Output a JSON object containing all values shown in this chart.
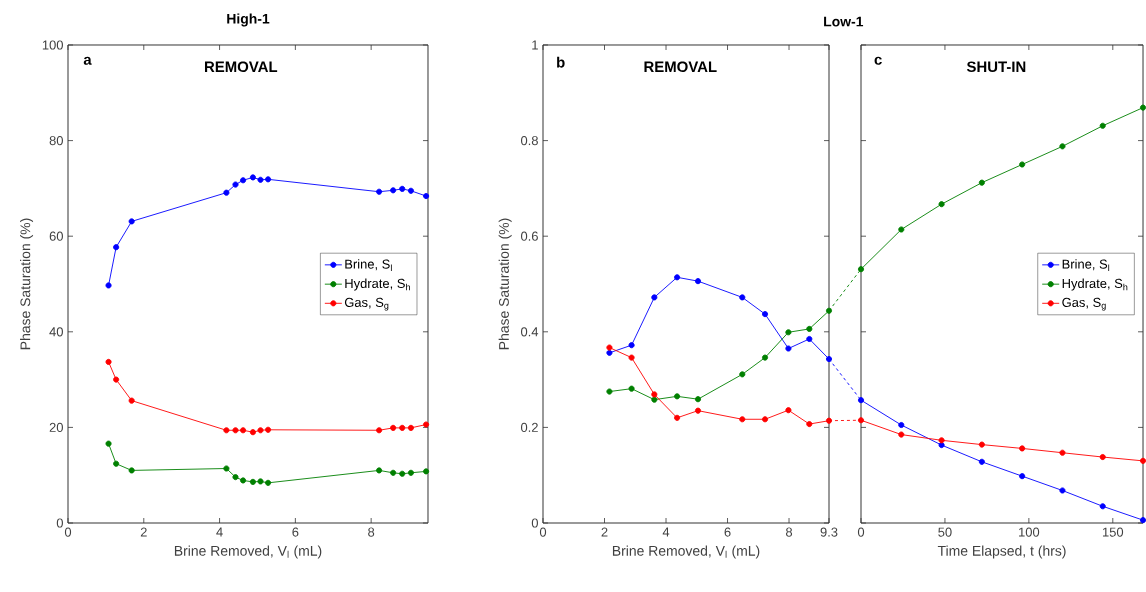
{
  "chart_data": [
    {
      "type": "line",
      "title": "High-1",
      "xlabel": "Brine Removed, V$_{l}$ (mL)",
      "ylabel": "Phase Saturation (%)",
      "annotations": [
        "a",
        "REMOVAL"
      ],
      "x": [
        1.07,
        1.27,
        1.68,
        4.18,
        4.42,
        4.62,
        4.88,
        5.08,
        5.28,
        8.21,
        8.58,
        8.82,
        9.05,
        9.45
      ],
      "series": [
        {
          "name": "Brine, S$_{l}$",
          "color": "#0000ff",
          "values": [
            49.7,
            57.7,
            63.1,
            69.1,
            70.8,
            71.7,
            72.3,
            71.8,
            71.9,
            69.3,
            69.6,
            69.9,
            69.5,
            68.4
          ]
        },
        {
          "name": "Hydrate, S$_{h}$",
          "color": "#008000",
          "values": [
            16.6,
            12.4,
            11.0,
            11.4,
            9.6,
            8.9,
            8.6,
            8.7,
            8.4,
            11.0,
            10.5,
            10.3,
            10.5,
            10.8
          ]
        },
        {
          "name": "Gas, S$_{g}$",
          "color": "#ff0000",
          "values": [
            33.7,
            30.0,
            25.6,
            19.4,
            19.4,
            19.4,
            19.0,
            19.4,
            19.5,
            19.4,
            19.9,
            19.9,
            19.9,
            20.6
          ]
        }
      ],
      "xlim": [
        0,
        9.5
      ],
      "xticks": [
        0,
        2,
        4,
        6,
        8
      ],
      "ylim": [
        0,
        100
      ],
      "yticks": [
        0,
        20,
        40,
        60,
        80,
        100
      ],
      "legend": "right",
      "marker": "circle",
      "line_style": "solid"
    },
    {
      "type": "line",
      "title": "Low-1",
      "xlabel": "Brine Removed, V$_{l}$ (mL)",
      "ylabel": "Phase Saturation (%)",
      "annotations": [
        "b",
        "REMOVAL"
      ],
      "x": [
        2.16,
        2.88,
        3.62,
        4.36,
        5.04,
        6.48,
        7.22,
        7.98,
        8.66,
        9.3
      ],
      "series": [
        {
          "color": "#0000ff",
          "values": [
            0.356,
            0.372,
            0.472,
            0.514,
            0.506,
            0.472,
            0.437,
            0.365,
            0.385,
            0.343
          ]
        },
        {
          "color": "#008000",
          "values": [
            0.275,
            0.281,
            0.258,
            0.265,
            0.259,
            0.311,
            0.346,
            0.399,
            0.406,
            0.444
          ]
        },
        {
          "color": "#ff0000",
          "values": [
            0.367,
            0.346,
            0.269,
            0.22,
            0.235,
            0.217,
            0.217,
            0.236,
            0.207,
            0.214
          ]
        }
      ],
      "xlim": [
        0,
        9.3
      ],
      "xticks": [
        0,
        2,
        4,
        6,
        8,
        9.3
      ],
      "ylim": [
        0,
        1
      ],
      "yticks": [
        0,
        0.2,
        0.4,
        0.6,
        0.8,
        1
      ],
      "legend": false,
      "marker": "circle",
      "line_style": "solid"
    },
    {
      "type": "line",
      "xlabel": "Time Elapsed, t (hrs)",
      "annotations": [
        "c",
        "SHUT-IN"
      ],
      "x": [
        0,
        24,
        48,
        72,
        96,
        120,
        144,
        168
      ],
      "series": [
        {
          "name": "Brine, S$_{l}$",
          "color": "#0000ff",
          "values": [
            0.257,
            0.205,
            0.163,
            0.128,
            0.098,
            0.068,
            0.035,
            0.006
          ]
        },
        {
          "name": "Hydrate, S$_{h}$",
          "color": "#008000",
          "values": [
            0.531,
            0.614,
            0.667,
            0.712,
            0.75,
            0.788,
            0.831,
            0.869
          ]
        },
        {
          "name": "Gas, S$_{g}$",
          "color": "#ff0000",
          "values": [
            0.215,
            0.185,
            0.173,
            0.164,
            0.156,
            0.147,
            0.138,
            0.13
          ]
        }
      ],
      "xlim": [
        0,
        168
      ],
      "xticks": [
        0,
        50,
        100,
        150
      ],
      "ylim": [
        0,
        1
      ],
      "yticks": [
        0,
        0.2,
        0.4,
        0.6,
        0.8,
        1
      ],
      "tick_labels": "x",
      "legend": "right",
      "marker": "circle",
      "line_style": "solid"
    }
  ]
}
